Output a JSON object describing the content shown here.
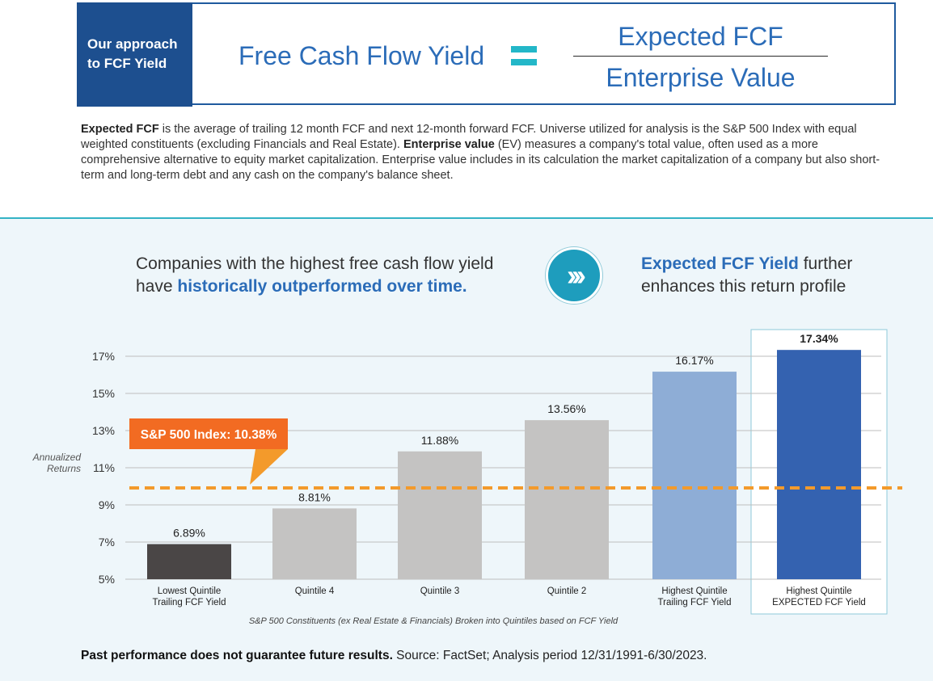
{
  "header": {
    "approach_line1": "Our approach",
    "approach_line2": "to FCF Yield",
    "formula_lhs": "Free Cash Flow Yield",
    "formula_numerator": "Expected FCF",
    "formula_denominator": "Enterprise Value"
  },
  "definition": {
    "term1": "Expected FCF",
    "text1": " is the average of trailing 12 month FCF and next 12-month forward FCF. Universe utilized for analysis is the S&P 500 Index with equal weighted constituents (excluding Financials and Real Estate). ",
    "term2": "Enterprise value",
    "text2": " (EV) measures a company's total value, often used as a more comprehensive alternative to equity market capitalization. Enterprise value includes in its calculation the market capitalization of a company but also short-term and long-term debt and any cash on the company's balance sheet."
  },
  "headline_left": {
    "line1": "Companies with the highest free cash flow yield",
    "line2_prefix": "have ",
    "line2_emphasis": "historically outperformed over time."
  },
  "headline_right": {
    "emphasis": "Expected FCF Yield",
    "line1_suffix": " further",
    "line2": "enhances this return profile"
  },
  "icon": "double-chevron-right-icon",
  "chart_data": {
    "type": "bar",
    "categories": [
      [
        "Lowest Quintile",
        "Trailing FCF Yield"
      ],
      [
        "Quintile 4"
      ],
      [
        "Quintile 3"
      ],
      [
        "Quintile 2"
      ],
      [
        "Highest Quintile",
        "Trailing FCF Yield"
      ],
      [
        "Highest Quintile",
        "EXPECTED FCF Yield"
      ]
    ],
    "values": [
      6.89,
      8.81,
      11.88,
      13.56,
      16.17,
      17.34
    ],
    "value_labels": [
      "6.89%",
      "8.81%",
      "11.88%",
      "13.56%",
      "16.17%",
      "17.34%"
    ],
    "bar_colors": [
      "#4a4646",
      "#c4c3c2",
      "#c4c3c2",
      "#c4c3c2",
      "#8eadd6",
      "#3462b0"
    ],
    "highlighted_index": 5,
    "yticks": [
      5,
      7,
      9,
      11,
      13,
      15,
      17
    ],
    "ytick_labels": [
      "5%",
      "7%",
      "9%",
      "11%",
      "13%",
      "15%",
      "17%"
    ],
    "ylim": [
      5,
      17.8
    ],
    "ylabel_line1": "Annualized",
    "ylabel_line2": "Returns",
    "xlabel": "S&P 500 Constituents (ex Real Estate & Financials) Broken into Quintiles based on FCF Yield",
    "grid": true,
    "reference_line": {
      "label": "S&P 500 Index: 10.38%",
      "value": 10.38,
      "color": "#f39a2b",
      "callout_color": "#f26b22"
    }
  },
  "footer": {
    "bold": "Past performance does not guarantee future results.",
    "text": " Source: FactSet; Analysis period 12/31/1991-6/30/2023."
  }
}
